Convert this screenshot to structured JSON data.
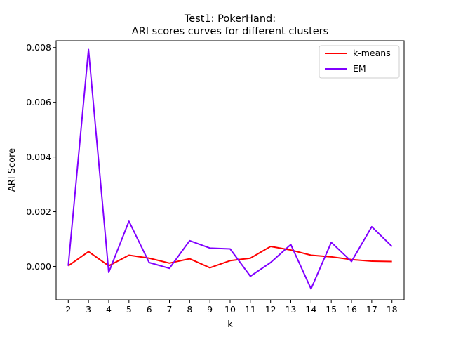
{
  "chart_data": {
    "type": "line",
    "title_line1": "Test1: PokerHand:",
    "title_line2": "ARI scores curves for different clusters",
    "xlabel": "k",
    "ylabel": "ARI Score",
    "x": [
      2,
      3,
      4,
      5,
      6,
      7,
      8,
      9,
      10,
      11,
      12,
      13,
      14,
      15,
      16,
      17,
      18
    ],
    "xlim": [
      1.4,
      18.6
    ],
    "ylim": [
      -0.00122,
      0.00825
    ],
    "yticks": [
      0.0,
      0.002,
      0.004,
      0.006,
      0.008
    ],
    "ytick_labels": [
      "0.000",
      "0.002",
      "0.004",
      "0.006",
      "0.008"
    ],
    "legend_position": "top-right",
    "series": [
      {
        "name": "k-means",
        "color": "#ff0000",
        "values": [
          2e-05,
          0.00054,
          2e-05,
          0.00041,
          0.0003,
          0.00012,
          0.00028,
          -5e-05,
          0.00021,
          0.0003,
          0.00073,
          0.0006,
          0.00041,
          0.00035,
          0.00025,
          0.00019,
          0.00018
        ]
      },
      {
        "name": "EM",
        "color": "#8000ff",
        "values": [
          2e-05,
          0.00793,
          -0.00022,
          0.00165,
          0.00014,
          -7e-05,
          0.00094,
          0.00067,
          0.00064,
          -0.00036,
          0.00014,
          0.0008,
          -0.00082,
          0.00088,
          0.00018,
          0.00145,
          0.00073
        ]
      }
    ]
  }
}
